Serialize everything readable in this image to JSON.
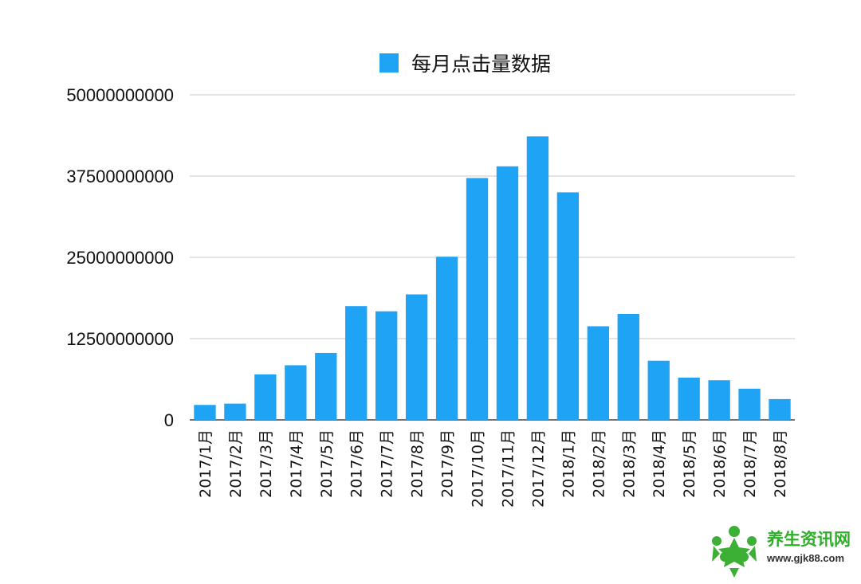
{
  "chart_data": {
    "type": "bar",
    "title": "",
    "xlabel": "",
    "ylabel": "",
    "ylim": [
      0,
      50000000000
    ],
    "yticks": [
      "0",
      "12500000000",
      "25000000000",
      "37500000000",
      "50000000000"
    ],
    "grid": true,
    "legend_position": "top",
    "categories": [
      "2017/1月",
      "2017/2月",
      "2017/3月",
      "2017/4月",
      "2017/5月",
      "2017/6月",
      "2017/7月",
      "2017/8月",
      "2017/9月",
      "2017/10月",
      "2017/11月",
      "2017/12月",
      "2018/1月",
      "2018/2月",
      "2018/3月",
      "2018/4月",
      "2018/5月",
      "2018/6月",
      "2018/7月",
      "2018/8月"
    ],
    "series": [
      {
        "name": "每月点击量数据",
        "color": "#1fa3f5",
        "values": [
          2300000000,
          2500000000,
          7000000000,
          8400000000,
          10300000000,
          17500000000,
          16700000000,
          19300000000,
          25100000000,
          37200000000,
          39000000000,
          43600000000,
          35000000000,
          14400000000,
          16300000000,
          9100000000,
          6500000000,
          6100000000,
          4800000000,
          3200000000
        ]
      }
    ]
  },
  "watermark": {
    "title": "养生资讯网",
    "url": "www.gjk88.com"
  }
}
